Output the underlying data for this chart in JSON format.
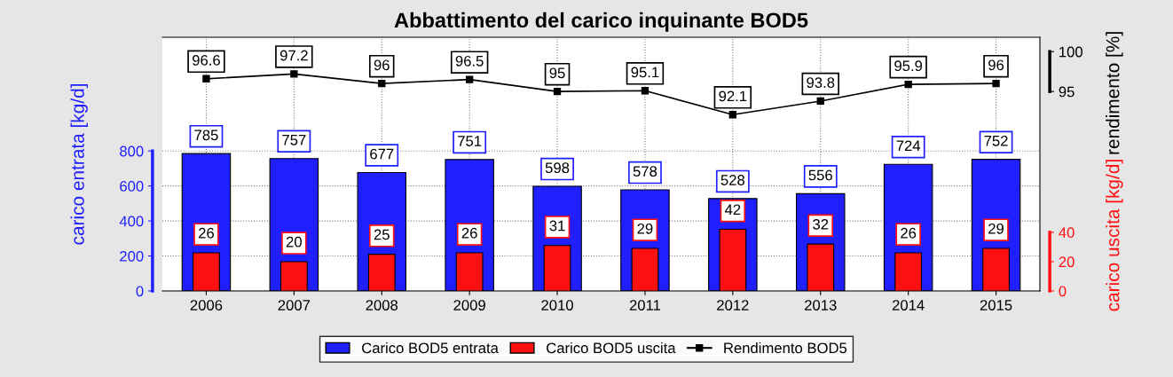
{
  "chart_data": {
    "type": "bar",
    "title": "Abbattimento del carico inquinante BOD5",
    "ylabel": "carico entrata [kg/d]",
    "y2label": "carico uscita [kg/d]",
    "y3label": "rendimento [%]",
    "categories": [
      "2006",
      "2007",
      "2008",
      "2009",
      "2010",
      "2011",
      "2012",
      "2013",
      "2014",
      "2015"
    ],
    "series": [
      {
        "name": "Carico BOD5 entrata",
        "axis": "y",
        "color": "#1f1fff",
        "values": [
          785,
          757,
          677,
          751,
          598,
          578,
          528,
          556,
          724,
          752
        ]
      },
      {
        "name": "Carico BOD5 uscita",
        "axis": "y2",
        "color": "#ff1010",
        "values": [
          26,
          20,
          25,
          26,
          31,
          29,
          42,
          32,
          26,
          29
        ]
      },
      {
        "name": "Rendimento BOD5",
        "type": "line",
        "axis": "y3",
        "color": "#000000",
        "marker": "square",
        "values": [
          96.6,
          97.2,
          96,
          96.5,
          95,
          95.1,
          92.1,
          93.8,
          95.9,
          96
        ]
      }
    ],
    "ylim": [
      0,
      1450
    ],
    "yticks": [
      0,
      200,
      400,
      600,
      800
    ],
    "y2lim": [
      0,
      173
    ],
    "y2ticks": [
      0,
      20,
      40
    ],
    "y3lim": [
      70,
      101.8
    ],
    "y3ticks": [
      95,
      100
    ],
    "data_labels": true,
    "grid": true,
    "legend": "bottom"
  }
}
